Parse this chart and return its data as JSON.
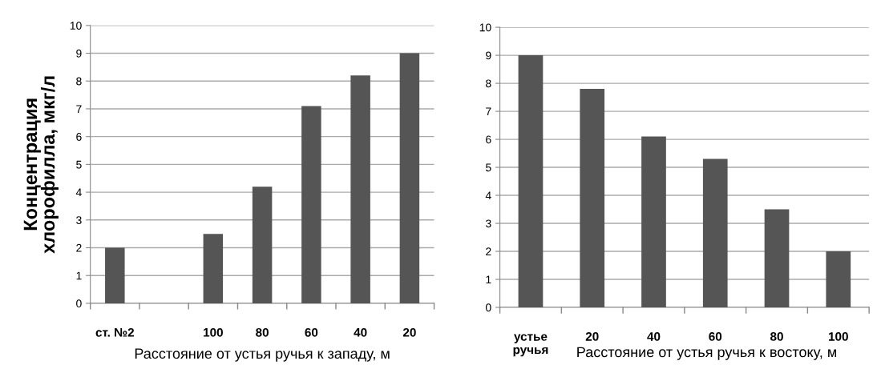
{
  "chart_data": [
    {
      "type": "bar",
      "categories": [
        "ст. №2",
        null,
        "100",
        "80",
        "60",
        "40",
        "20"
      ],
      "values": [
        2.0,
        null,
        2.5,
        4.2,
        7.1,
        8.2,
        9.0
      ],
      "color": "#555555",
      "xlabel": "Расстояние от устья ручья к западу, м",
      "ylabel": "Концентрация\nхлорофилла, мкг/л",
      "ylim": [
        0,
        10
      ],
      "yticks": [
        0,
        1,
        2,
        3,
        4,
        5,
        6,
        7,
        8,
        9,
        10
      ],
      "grid": "y"
    },
    {
      "type": "bar",
      "categories": [
        "устье\nручья",
        "20",
        "40",
        "60",
        "80",
        "100"
      ],
      "values": [
        9.0,
        7.8,
        6.1,
        5.3,
        3.5,
        2.0
      ],
      "color": "#555555",
      "xlabel": "Расстояние от устья ручья к востоку, м",
      "ylim": [
        0,
        10
      ],
      "yticks": [
        0,
        1,
        2,
        3,
        4,
        5,
        6,
        7,
        8,
        9,
        10
      ],
      "grid": "y"
    }
  ]
}
